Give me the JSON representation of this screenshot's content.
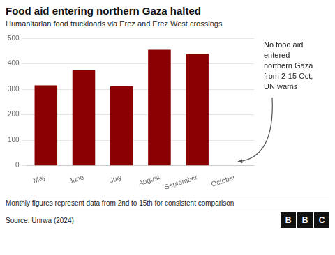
{
  "chart_data": {
    "type": "bar",
    "title": "Food aid entering northern Gaza halted",
    "subtitle": "Humanitarian food truckloads via Erez and Erez West crossings",
    "categories": [
      "May",
      "June",
      "July",
      "August",
      "September",
      "October"
    ],
    "values": [
      315,
      375,
      312,
      455,
      440,
      0
    ],
    "color": "#8B0000",
    "ylim": [
      0,
      500
    ],
    "yticks": [
      0,
      100,
      200,
      300,
      400,
      500
    ],
    "grid": true,
    "annotation": "No food aid\nentered\nnorthern Gaza\nfrom 2-15 Oct,\nUN warns",
    "footer_note": "Monthly figures represent data from 2nd to 15th for consistent comparison",
    "source": "Source: Unrwa (2024)",
    "logo": "BBC"
  }
}
